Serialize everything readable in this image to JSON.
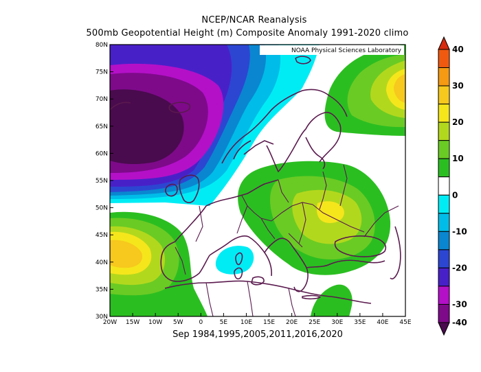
{
  "header": {
    "title": "NCEP/NCAR Reanalysis",
    "subtitle": "500mb Geopotential Height (m) Composite Anomaly 1991-2020 climo"
  },
  "credit": "NOAA Physical Sciences Laboratory",
  "footer": "Sep 1984,1995,2005,2011,2016,2020",
  "map": {
    "lon_range": [
      -20,
      45
    ],
    "lat_range": [
      30,
      80
    ],
    "lon_ticks": [
      "20W",
      "15W",
      "10W",
      "5W",
      "0",
      "5E",
      "10E",
      "15E",
      "20E",
      "25E",
      "30E",
      "35E",
      "40E",
      "45E"
    ],
    "lat_ticks": [
      "30N",
      "35N",
      "40N",
      "45N",
      "50N",
      "55N",
      "60N",
      "65N",
      "70N",
      "75N",
      "80N"
    ],
    "coast_color": "#5a1a4e"
  },
  "colorbar": {
    "labels": [
      "40",
      "30",
      "20",
      "10",
      "0",
      "-10",
      "-20",
      "-30",
      "-40"
    ],
    "levels": [
      {
        "range": ">40",
        "color": "#d72a0e"
      },
      {
        "range": "35 to 40",
        "color": "#ef5a10"
      },
      {
        "range": "30 to 35",
        "color": "#f59a12"
      },
      {
        "range": "25 to 30",
        "color": "#f7c81d"
      },
      {
        "range": "20 to 25",
        "color": "#f5e61c"
      },
      {
        "range": "15 to 20",
        "color": "#b2d81d"
      },
      {
        "range": "10 to 15",
        "color": "#6acb24"
      },
      {
        "range": "5 to 10",
        "color": "#2bbe21"
      },
      {
        "range": "-5 to 5",
        "color": "#ffffff"
      },
      {
        "range": "-10 to -5",
        "color": "#00ecf5"
      },
      {
        "range": "-15 to -10",
        "color": "#00bce8"
      },
      {
        "range": "-20 to -15",
        "color": "#0a86d0"
      },
      {
        "range": "-25 to -20",
        "color": "#2c46d2"
      },
      {
        "range": "-30 to -25",
        "color": "#4820c8"
      },
      {
        "range": "-35 to -30",
        "color": "#b410c8"
      },
      {
        "range": "-40 to -35",
        "color": "#7e0a8a"
      },
      {
        "range": "<-40",
        "color": "#4a0a4e"
      }
    ]
  }
}
